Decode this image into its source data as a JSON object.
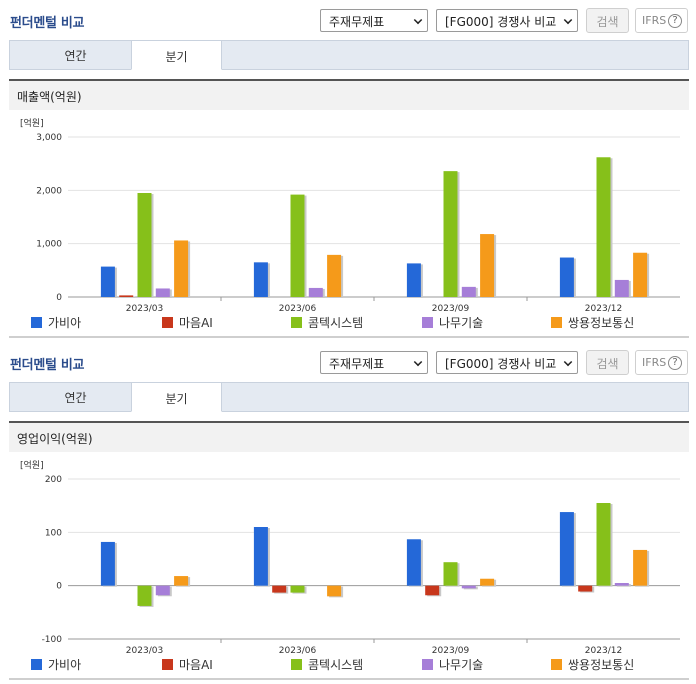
{
  "panel_title": "펀더멘털 비교",
  "selects": {
    "statement": "주재무제표",
    "group": "[FG000] 경쟁사 비교"
  },
  "search_label": "검색",
  "ifrs_label": "IFRS",
  "help_glyph": "?",
  "tabs": [
    "연간",
    "분기"
  ],
  "active_tab": "분기",
  "colors": {
    "가비아": "#2468d8",
    "마음AI": "#c8371c",
    "콤텍시스템": "#86c01a",
    "나무기술": "#a67ed8",
    "쌍용정보통신": "#f59a1a"
  },
  "chart_data": [
    {
      "type": "bar",
      "title": "매출액(억원)",
      "unit_label": "[억원]",
      "categories": [
        "2023/03",
        "2023/06",
        "2023/09",
        "2023/12"
      ],
      "ylim": [
        0,
        3000
      ],
      "yticks": [
        0,
        1000,
        2000,
        3000
      ],
      "ytick_labels": [
        "0",
        "1,000",
        "2,000",
        "3,000"
      ],
      "grid": true,
      "legend": "bottom",
      "series": [
        {
          "name": "가비아",
          "values": [
            570,
            650,
            630,
            740
          ]
        },
        {
          "name": "마음AI",
          "values": [
            30,
            0,
            0,
            0
          ]
        },
        {
          "name": "콤텍시스템",
          "values": [
            1950,
            1920,
            2360,
            2620
          ]
        },
        {
          "name": "나무기술",
          "values": [
            160,
            170,
            190,
            320
          ]
        },
        {
          "name": "쌍용정보통신",
          "values": [
            1060,
            790,
            1180,
            830
          ]
        }
      ]
    },
    {
      "type": "bar",
      "title": "영업이익(억원)",
      "unit_label": "[억원]",
      "categories": [
        "2023/03",
        "2023/06",
        "2023/09",
        "2023/12"
      ],
      "ylim": [
        -100,
        200
      ],
      "yticks": [
        -100,
        0,
        100,
        200
      ],
      "ytick_labels": [
        "-100",
        "0",
        "100",
        "200"
      ],
      "grid": true,
      "legend": "bottom",
      "series": [
        {
          "name": "가비아",
          "values": [
            82,
            110,
            87,
            138
          ]
        },
        {
          "name": "마음AI",
          "values": [
            0,
            -13,
            -18,
            -11
          ]
        },
        {
          "name": "콤텍시스템",
          "values": [
            -38,
            -13,
            44,
            155
          ]
        },
        {
          "name": "나무기술",
          "values": [
            -18,
            0,
            -5,
            5
          ]
        },
        {
          "name": "쌍용정보통신",
          "values": [
            18,
            -20,
            13,
            67
          ]
        }
      ]
    }
  ]
}
